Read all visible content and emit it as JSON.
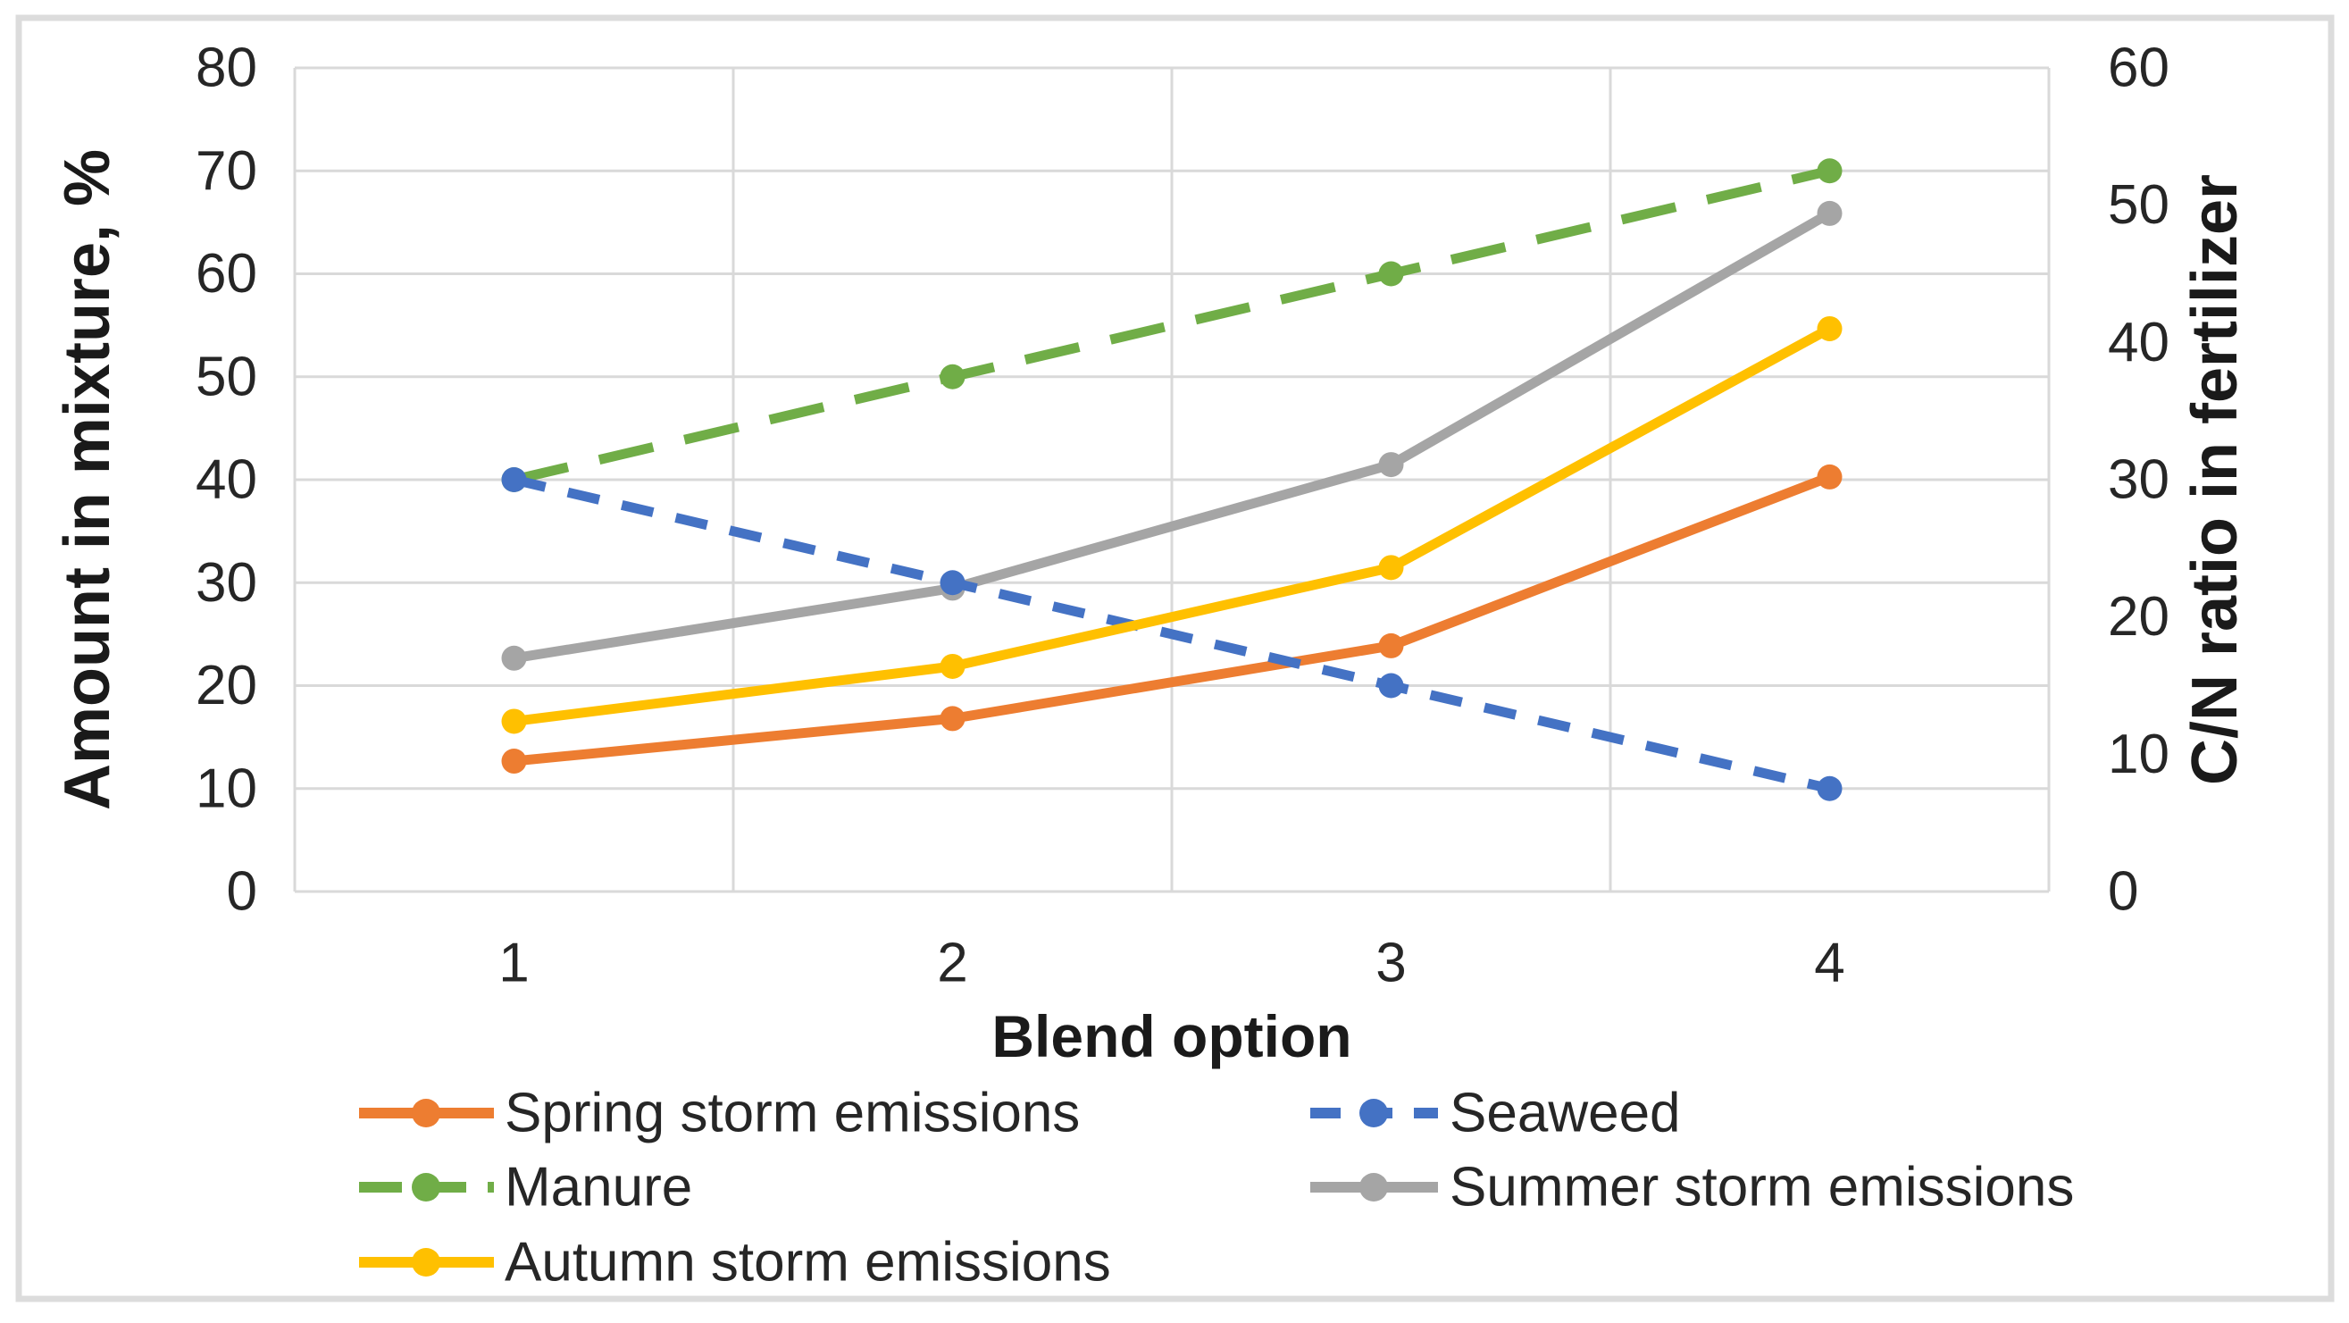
{
  "chart_data": {
    "type": "line",
    "title": "",
    "xlabel": "Blend option",
    "x_categories": [
      "1",
      "2",
      "3",
      "4"
    ],
    "left_axis": {
      "title": "Amount in mixture, %",
      "min": 0,
      "max": 80,
      "step": 10
    },
    "right_axis": {
      "title": "C/N ratio in fertilizer",
      "min": 0,
      "max": 60,
      "step": 10
    },
    "grid": true,
    "legend_position": "bottom",
    "series": [
      {
        "name": "Spring storm emissions",
        "axis": "right",
        "color": "#ED7D31",
        "style": "solid",
        "values": [
          9.5,
          12.6,
          17.9,
          30.2
        ]
      },
      {
        "name": "Seaweed",
        "axis": "left",
        "color": "#4472C4",
        "style": "dashed",
        "values": [
          40,
          30,
          20,
          10
        ]
      },
      {
        "name": "Manure",
        "axis": "left",
        "color": "#70AD47",
        "style": "long-dash",
        "values": [
          40,
          50,
          60,
          70
        ]
      },
      {
        "name": "Summer storm emissions",
        "axis": "right",
        "color": "#A5A5A5",
        "style": "solid",
        "values": [
          17,
          22.1,
          31.1,
          49.4
        ]
      },
      {
        "name": "Autumn storm emissions",
        "axis": "right",
        "color": "#FFC000",
        "style": "solid",
        "values": [
          12.4,
          16.4,
          23.6,
          41
        ]
      }
    ],
    "colors": {
      "grid": "#D9D9D9",
      "text": "#262626",
      "frame": "#DCDCDC",
      "background": "#FFFFFF"
    }
  }
}
